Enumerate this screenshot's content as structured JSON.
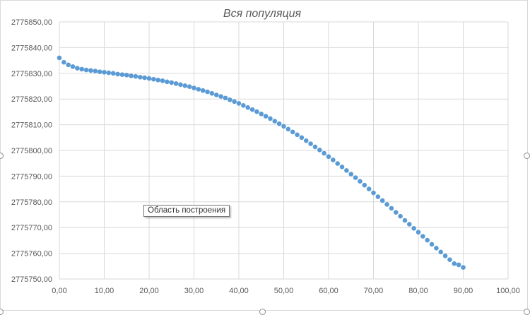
{
  "chart_data": {
    "type": "scatter",
    "title": "Вся популяция",
    "xlabel": "",
    "ylabel": "",
    "xlim": [
      0,
      100
    ],
    "ylim": [
      2775750,
      2775850
    ],
    "x_ticks": [
      "0,00",
      "10,00",
      "20,00",
      "30,00",
      "40,00",
      "50,00",
      "60,00",
      "70,00",
      "80,00",
      "90,00",
      "100,00"
    ],
    "y_ticks": [
      "2775750,00",
      "2775760,00",
      "2775770,00",
      "2775780,00",
      "2775790,00",
      "2775800,00",
      "2775810,00",
      "2775820,00",
      "2775830,00",
      "2775840,00",
      "2775850,00"
    ],
    "grid": true,
    "marker_color": "#5b9bd5",
    "series": [
      {
        "x": [
          0,
          1,
          2,
          3,
          4,
          5,
          6,
          7,
          8,
          9,
          10,
          11,
          12,
          13,
          14,
          15,
          16,
          17,
          18,
          19,
          20,
          21,
          22,
          23,
          24,
          25,
          26,
          27,
          28,
          29,
          30,
          31,
          32,
          33,
          34,
          35,
          36,
          37,
          38,
          39,
          40,
          41,
          42,
          43,
          44,
          45,
          46,
          47,
          48,
          49,
          50,
          51,
          52,
          53,
          54,
          55,
          56,
          57,
          58,
          59,
          60,
          61,
          62,
          63,
          64,
          65,
          66,
          67,
          68,
          69,
          70,
          71,
          72,
          73,
          74,
          75,
          76,
          77,
          78,
          79,
          80,
          81,
          82,
          83,
          84,
          85,
          86,
          87,
          88,
          89,
          90
        ],
        "y": [
          2775836.0,
          2775834.3,
          2775833.3,
          2775832.6,
          2775832.0,
          2775831.6,
          2775831.3,
          2775831.1,
          2775830.9,
          2775830.6,
          2775830.4,
          2775830.2,
          2775830.0,
          2775829.7,
          2775829.5,
          2775829.3,
          2775829.0,
          2775828.8,
          2775828.5,
          2775828.3,
          2775828.0,
          2775827.7,
          2775827.4,
          2775827.1,
          2775826.7,
          2775826.4,
          2775826.0,
          2775825.6,
          2775825.2,
          2775824.8,
          2775824.3,
          2775823.8,
          2775823.3,
          2775822.8,
          2775822.2,
          2775821.6,
          2775821.0,
          2775820.4,
          2775819.7,
          2775819.0,
          2775818.3,
          2775817.5,
          2775816.7,
          2775815.9,
          2775815.1,
          2775814.2,
          2775813.3,
          2775812.4,
          2775811.4,
          2775810.4,
          2775809.4,
          2775808.3,
          2775807.2,
          2775806.1,
          2775805.0,
          2775803.8,
          2775802.6,
          2775801.4,
          2775800.2,
          2775798.9,
          2775797.6,
          2775796.3,
          2775794.9,
          2775793.6,
          2775792.2,
          2775790.8,
          2775789.4,
          2775788.0,
          2775786.5,
          2775785.0,
          2775783.5,
          2775782.0,
          2775780.5,
          2775779.0,
          2775777.5,
          2775775.9,
          2775774.4,
          2775772.8,
          2775771.3,
          2775769.7,
          2775768.2,
          2775766.6,
          2775765.1,
          2775763.5,
          2775762.0,
          2775760.5,
          2775759.0,
          2775757.5,
          2775756.0,
          2775755.5,
          2775754.5
        ]
      }
    ]
  },
  "tooltip": {
    "text": "Область построения"
  }
}
